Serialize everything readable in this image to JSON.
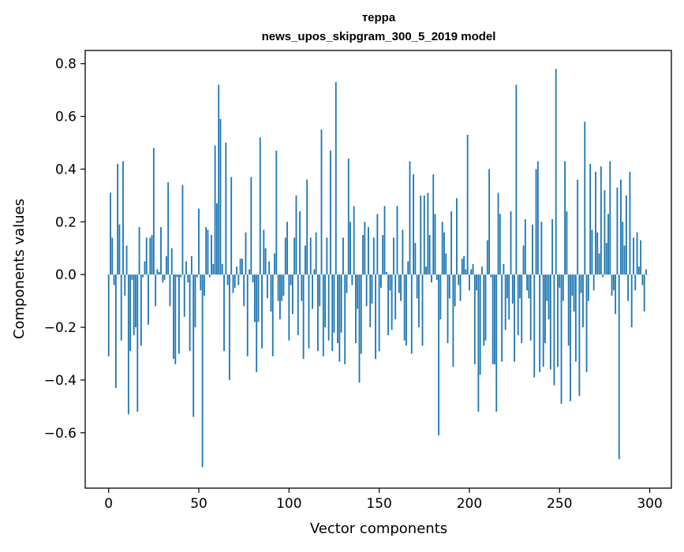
{
  "chart_data": {
    "type": "bar",
    "title": "теppa",
    "subtitle": "news_upos_skipgram_300_5_2019 model",
    "xlabel": "Vector components",
    "ylabel": "Components values",
    "xlim": [
      -13,
      312
    ],
    "ylim": [
      -0.81,
      0.85
    ],
    "xticks": [
      0,
      50,
      100,
      150,
      200,
      250,
      300
    ],
    "yticks": [
      -0.6,
      -0.4,
      -0.2,
      0.0,
      0.2,
      0.4,
      0.6,
      0.8
    ],
    "ytick_labels": [
      "−0.6",
      "−0.4",
      "−0.2",
      "0.0",
      "0.2",
      "0.4",
      "0.6",
      "0.8"
    ],
    "grid": false,
    "bar_color": "#1f77b4",
    "values": [
      -0.31,
      0.31,
      0.14,
      -0.04,
      -0.43,
      0.42,
      0.19,
      -0.25,
      0.43,
      -0.08,
      0.11,
      -0.53,
      -0.29,
      -0.02,
      -0.23,
      -0.2,
      -0.52,
      0.18,
      -0.27,
      -0.01,
      0.05,
      0.14,
      -0.19,
      0.14,
      0.15,
      0.48,
      -0.12,
      0.02,
      0.01,
      0.18,
      -0.03,
      -0.02,
      0.07,
      0.35,
      -0.12,
      0.1,
      -0.32,
      -0.34,
      -0.01,
      -0.3,
      -0.01,
      0.34,
      -0.16,
      0.05,
      -0.03,
      -0.29,
      0.07,
      -0.54,
      -0.2,
      -0.01,
      0.25,
      -0.06,
      -0.73,
      -0.08,
      0.18,
      0.17,
      -0.01,
      0.15,
      0.04,
      0.49,
      0.27,
      0.72,
      0.59,
      0.04,
      -0.29,
      0.5,
      -0.04,
      -0.4,
      0.37,
      -0.07,
      -0.05,
      0.03,
      -0.04,
      0.06,
      0.06,
      -0.12,
      0.16,
      -0.31,
      0.02,
      0.37,
      -0.03,
      -0.18,
      -0.37,
      -0.18,
      0.52,
      -0.28,
      0.17,
      0.1,
      -0.09,
      0.05,
      -0.14,
      -0.31,
      0.08,
      0.47,
      -0.1,
      -0.17,
      -0.1,
      -0.08,
      0.14,
      0.2,
      -0.25,
      -0.04,
      -0.15,
      0.14,
      0.3,
      -0.23,
      0.24,
      -0.1,
      -0.32,
      0.11,
      0.36,
      -0.28,
      0.14,
      -0.13,
      0.02,
      0.16,
      -0.29,
      -0.12,
      0.55,
      -0.31,
      -0.2,
      0.14,
      -0.25,
      0.47,
      -0.29,
      -0.22,
      0.73,
      -0.26,
      -0.33,
      -0.22,
      0.14,
      -0.34,
      -0.07,
      0.44,
      0.2,
      -0.04,
      0.26,
      -0.26,
      -0.13,
      -0.41,
      -0.3,
      0.15,
      0.2,
      -0.12,
      0.18,
      -0.2,
      -0.11,
      0.14,
      -0.32,
      0.23,
      -0.29,
      -0.05,
      0.15,
      0.26,
      0.01,
      -0.23,
      -0.06,
      -0.21,
      0.14,
      -0.17,
      0.26,
      -0.07,
      -0.1,
      0.17,
      -0.25,
      -0.27,
      0.05,
      0.43,
      -0.3,
      0.38,
      0.12,
      -0.09,
      -0.2,
      0.3,
      -0.27,
      0.3,
      0.03,
      0.31,
      0.15,
      -0.03,
      0.38,
      0.23,
      -0.02,
      -0.61,
      -0.17,
      0.2,
      0.16,
      0.08,
      -0.26,
      -0.09,
      0.24,
      -0.35,
      -0.12,
      0.29,
      -0.04,
      -0.1,
      0.06,
      0.07,
      0.02,
      0.53,
      -0.06,
      0.02,
      0.04,
      -0.34,
      -0.06,
      -0.52,
      -0.38,
      0.03,
      -0.27,
      -0.25,
      0.13,
      0.4,
      -0.01,
      -0.34,
      -0.34,
      -0.52,
      0.31,
      0.23,
      -0.33,
      0.04,
      -0.21,
      -0.09,
      -0.17,
      0.24,
      -0.11,
      -0.33,
      0.72,
      -0.23,
      -0.09,
      -0.26,
      0.11,
      0.21,
      -0.06,
      -0.09,
      -0.25,
      0.19,
      -0.39,
      0.4,
      0.43,
      -0.37,
      0.2,
      -0.35,
      -0.26,
      -0.1,
      -0.17,
      -0.36,
      0.21,
      -0.42,
      0.78,
      -0.35,
      -0.05,
      -0.49,
      -0.1,
      0.43,
      0.24,
      -0.27,
      -0.48,
      -0.08,
      -0.14,
      -0.33,
      0.36,
      -0.46,
      -0.07,
      -0.2,
      0.58,
      -0.37,
      -0.1,
      0.42,
      0.17,
      -0.06,
      0.39,
      0.16,
      0.08,
      0.41,
      -0.01,
      0.32,
      0.12,
      0.23,
      0.43,
      -0.08,
      -0.06,
      -0.15,
      0.33,
      -0.7,
      0.36,
      0.2,
      0.11,
      0.3,
      -0.1,
      0.39,
      -0.2,
      0.14,
      -0.06,
      0.16,
      0.03,
      0.13,
      -0.04,
      -0.14,
      0.02,
      0.0
    ]
  }
}
